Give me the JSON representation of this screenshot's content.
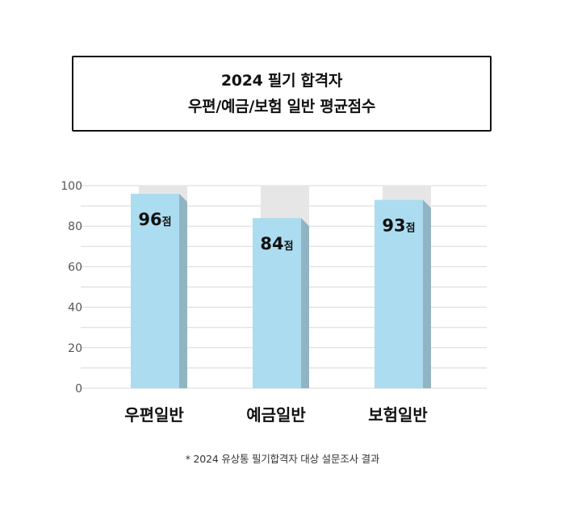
{
  "title_box": {
    "line1": "2024 필기 합격자",
    "line2": "우편/예금/보험 일반 평균점수"
  },
  "chart_data": {
    "type": "bar",
    "title": "2024 필기 합격자 우편/예금/보험 일반 평균점수",
    "categories": [
      "우편일반",
      "예금일반",
      "보험일반"
    ],
    "values": [
      96,
      84,
      93
    ],
    "value_labels": [
      "96점",
      "84점",
      "93점"
    ],
    "background_max": 100,
    "ylim": [
      0,
      100
    ],
    "yticks": [
      0,
      20,
      40,
      60,
      80,
      100
    ],
    "xlabel": "",
    "ylabel": "",
    "grid": true,
    "colors": {
      "bar_front": "#acdcf0",
      "bar_side": "#91b4c3",
      "bar_background": "#e6e6e6",
      "grid": "#d8d8d8"
    }
  },
  "footnote": "* 2024 유상통 필기합격자 대상 설문조사 결과"
}
